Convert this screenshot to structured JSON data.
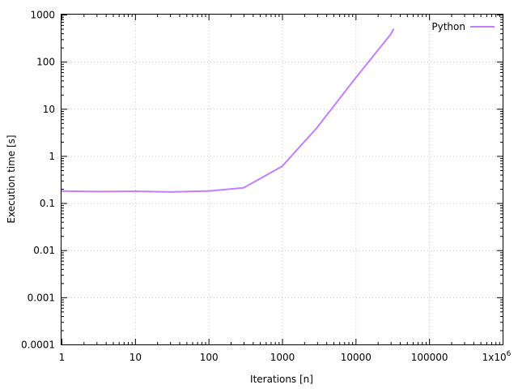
{
  "chart_data": {
    "type": "line",
    "title": "",
    "xlabel": "Iterations [n]",
    "ylabel": "Execution time [s]",
    "xscale": "log",
    "yscale": "log",
    "xlim": [
      1,
      1000000
    ],
    "ylim": [
      0.0001,
      1000
    ],
    "grid": true,
    "legend_position": "top-right",
    "x_ticks": [
      {
        "value": 1,
        "label": "1"
      },
      {
        "value": 10,
        "label": "10"
      },
      {
        "value": 100,
        "label": "100"
      },
      {
        "value": 1000,
        "label": "1000"
      },
      {
        "value": 10000,
        "label": "10000"
      },
      {
        "value": 100000,
        "label": "100000"
      },
      {
        "value": 1000000,
        "label": "1x10",
        "sup": "6"
      }
    ],
    "y_ticks": [
      {
        "value": 0.0001,
        "label": "0.0001"
      },
      {
        "value": 0.001,
        "label": "0.001"
      },
      {
        "value": 0.01,
        "label": "0.01"
      },
      {
        "value": 0.1,
        "label": "0.1"
      },
      {
        "value": 1,
        "label": "1"
      },
      {
        "value": 10,
        "label": "10"
      },
      {
        "value": 100,
        "label": "100"
      },
      {
        "value": 1000,
        "label": "1000"
      }
    ],
    "series": [
      {
        "name": "Python",
        "color": "#c080ff",
        "x": [
          1,
          3,
          10,
          30,
          100,
          300,
          1000,
          3000,
          10000,
          30000,
          33000
        ],
        "y": [
          0.18,
          0.175,
          0.178,
          0.172,
          0.18,
          0.21,
          0.6,
          4,
          45,
          380,
          500
        ]
      }
    ]
  }
}
